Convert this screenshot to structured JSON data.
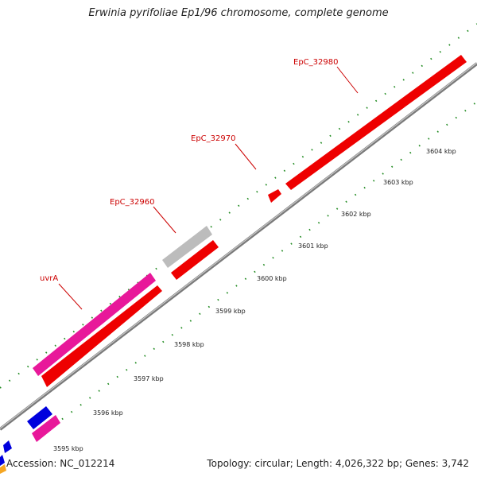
{
  "title": "Erwinia pyrifoliae Ep1/96 chromosome, complete genome",
  "footer": {
    "accession": "Accession: NC_012214",
    "summary": "Topology: circular; Length: 4,026,322 bp; Genes: 3,742"
  },
  "colors": {
    "red_gene": "#ee0000",
    "pink_gene": "#e8189a",
    "gray_gene": "#bcbcbc",
    "blue_gene": "#0000dd",
    "orange_gene": "#f5a623",
    "backbone": "#8c8c8c",
    "dots": "#1f8a1f",
    "label": "#cc0000"
  },
  "gene_labels": [
    "EpC_32980",
    "EpC_32970",
    "EpC_32960",
    "uvrA"
  ],
  "scale_ticks": [
    "3595 kbp",
    "3596 kbp",
    "3597 kbp",
    "3598 kbp",
    "3599 kbp",
    "3600 kbp",
    "3601 kbp",
    "3602 kbp",
    "3603 kbp",
    "3604 kbp"
  ]
}
